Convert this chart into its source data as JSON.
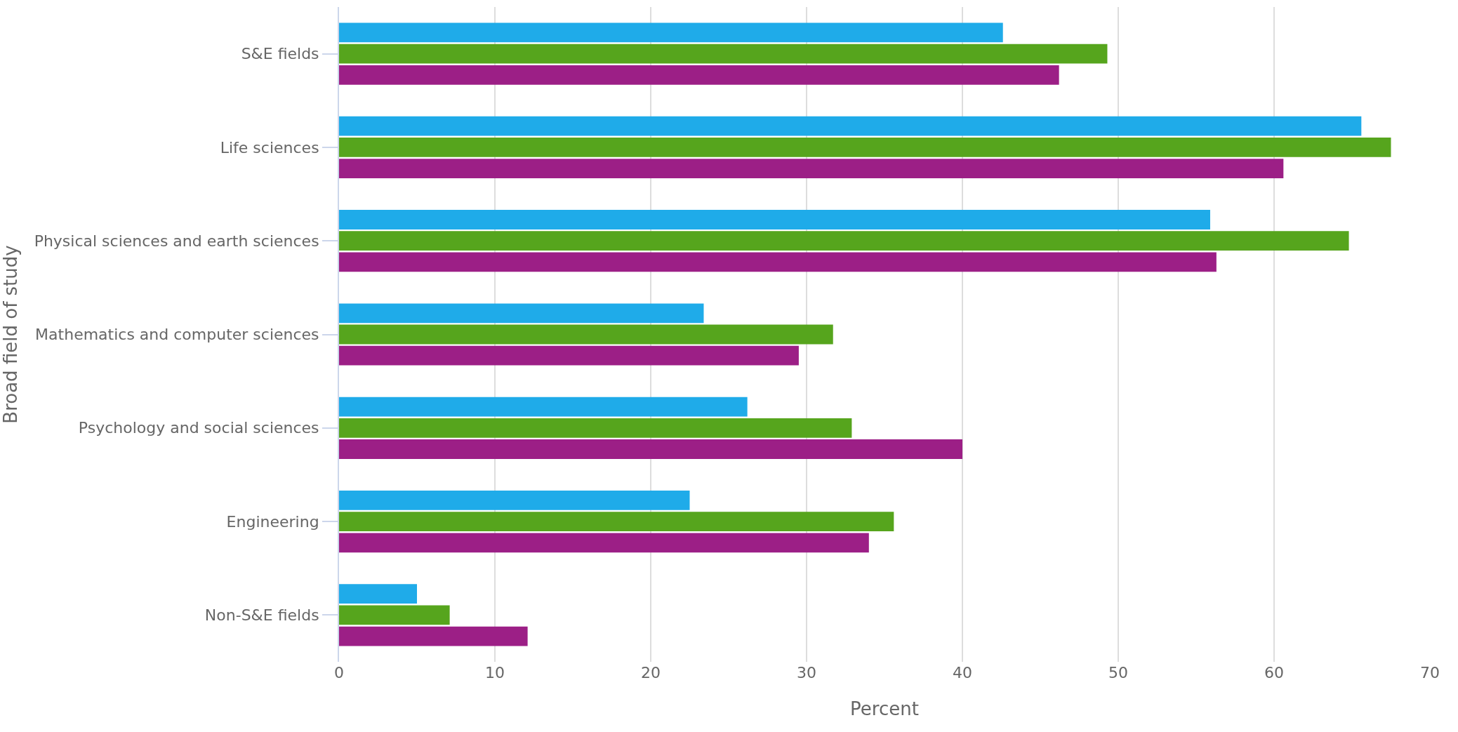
{
  "chart_data": {
    "type": "bar",
    "orientation": "horizontal",
    "xlabel": "Percent",
    "ylabel": "Broad field of study",
    "categories": [
      "S&E fields",
      "Life sciences",
      "Physical sciences and earth sciences",
      "Mathematics and computer sciences",
      "Psychology and social sciences",
      "Engineering",
      "Non-S&E fields"
    ],
    "series": [
      {
        "color": "#1fabe9",
        "values": [
          42.6,
          65.6,
          55.9,
          23.4,
          26.2,
          22.5,
          5.0
        ]
      },
      {
        "color": "#56a51d",
        "values": [
          49.3,
          67.5,
          64.8,
          31.7,
          32.9,
          35.6,
          7.1
        ]
      },
      {
        "color": "#9c1f86",
        "values": [
          46.2,
          60.6,
          56.3,
          29.5,
          40.0,
          34.0,
          12.1
        ]
      }
    ],
    "xlim": [
      0,
      70
    ],
    "xticks": [
      0,
      10,
      20,
      30,
      40,
      50,
      60,
      70
    ],
    "grid": "x",
    "legend": false
  }
}
